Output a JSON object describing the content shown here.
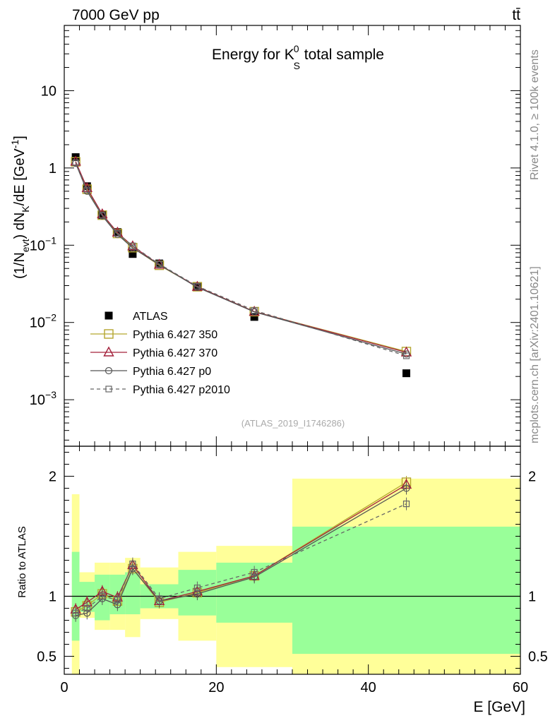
{
  "header": {
    "left": "7000 GeV pp",
    "right": "tt̄"
  },
  "side_labels": {
    "rivet": "Rivet 4.1.0, ≥ 100k events",
    "mcplots": "mcplots.cern.ch [arXiv:2401.10621]"
  },
  "colors": {
    "atlas": "#000000",
    "p350": "#b5a62f",
    "p370": "#a3213b",
    "p0": "#555555",
    "p2010": "#666666",
    "band_yellow": "#ffff99",
    "band_green": "#99ff99"
  },
  "chart_data": [
    {
      "type": "line",
      "title": "Energy for K",
      "title_sup": "0",
      "title_sub": "S",
      "title_suffix": " total sample",
      "ylabel": "(1/N_evt) dN_K/dE [GeV^-1]",
      "ylabel_parts": {
        "a": "(1/N",
        "sub1": "evt",
        "b": ") dN",
        "sub2": "K",
        "c": "/dE [GeV",
        "sup": "-1",
        "d": "]"
      },
      "yscale": "log",
      "xlim": [
        0,
        60
      ],
      "ylim": [
        0.00025,
        70
      ],
      "yticks": [
        {
          "v": 10,
          "mant": "10",
          "exp": ""
        },
        {
          "v": 1,
          "mant": "1",
          "exp": ""
        },
        {
          "v": 0.1,
          "mant": "10",
          "exp": "−1"
        },
        {
          "v": 0.01,
          "mant": "10",
          "exp": "−2"
        },
        {
          "v": 0.001,
          "mant": "10",
          "exp": "−3"
        }
      ],
      "x": [
        1.5,
        3,
        5,
        7,
        9,
        12.5,
        17.5,
        25,
        45
      ],
      "series": [
        {
          "name": "ATLAS",
          "values": [
            1.38,
            0.58,
            0.245,
            0.148,
            0.077,
            0.058,
            0.029,
            0.0118,
            0.0022
          ]
        },
        {
          "name": "Pythia 6.427 350",
          "values": [
            1.2,
            0.53,
            0.245,
            0.142,
            0.093,
            0.055,
            0.029,
            0.0138,
            0.0042
          ]
        },
        {
          "name": "Pythia 6.427 370",
          "values": [
            1.21,
            0.55,
            0.252,
            0.146,
            0.097,
            0.056,
            0.029,
            0.0138,
            0.0041
          ]
        },
        {
          "name": "Pythia 6.427 p0",
          "values": [
            1.15,
            0.5,
            0.24,
            0.138,
            0.092,
            0.056,
            0.0285,
            0.0137,
            0.0039
          ]
        },
        {
          "name": "Pythia 6.427 p2010",
          "values": [
            1.17,
            0.52,
            0.245,
            0.143,
            0.098,
            0.057,
            0.0295,
            0.0143,
            0.0037
          ]
        }
      ],
      "watermark": "(ATLAS_2019_I1746286)"
    },
    {
      "type": "line",
      "ylabel": "Ratio to ATLAS",
      "xlabel": "E [GeV]",
      "xlim": [
        0,
        60
      ],
      "ylim": [
        0.35,
        2.25
      ],
      "yticks": [
        {
          "v": 2,
          "label": "2"
        },
        {
          "v": 1,
          "label": "1"
        },
        {
          "v": 0.5,
          "label": "0.5"
        }
      ],
      "xticks": [
        {
          "v": 0,
          "label": "0"
        },
        {
          "v": 20,
          "label": "20"
        },
        {
          "v": 40,
          "label": "40"
        },
        {
          "v": 60,
          "label": "60"
        }
      ],
      "bands": [
        {
          "x0": 1,
          "x1": 2,
          "yellow": [
            0.35,
            1.85
          ],
          "green": [
            0.63,
            1.37
          ]
        },
        {
          "x0": 2,
          "x1": 4,
          "yellow": [
            0.82,
            1.2
          ],
          "green": [
            0.87,
            1.12
          ]
        },
        {
          "x0": 4,
          "x1": 6,
          "yellow": [
            0.72,
            1.28
          ],
          "green": [
            0.8,
            1.18
          ]
        },
        {
          "x0": 6,
          "x1": 8,
          "yellow": [
            0.72,
            1.28
          ],
          "green": [
            0.85,
            1.18
          ]
        },
        {
          "x0": 8,
          "x1": 10,
          "yellow": [
            0.66,
            1.32
          ],
          "green": [
            0.85,
            1.2
          ]
        },
        {
          "x0": 10,
          "x1": 15,
          "yellow": [
            0.81,
            1.24
          ],
          "green": [
            0.9,
            1.1
          ]
        },
        {
          "x0": 15,
          "x1": 20,
          "yellow": [
            0.63,
            1.37
          ],
          "green": [
            0.84,
            1.22
          ]
        },
        {
          "x0": 20,
          "x1": 30,
          "yellow": [
            0.41,
            1.42
          ],
          "green": [
            0.78,
            1.28
          ]
        },
        {
          "x0": 30,
          "x1": 60,
          "yellow": [
            0.35,
            1.98
          ],
          "green": [
            0.52,
            1.58
          ]
        }
      ],
      "x": [
        1.5,
        3,
        5,
        7,
        9,
        12.5,
        17.5,
        25,
        45
      ],
      "series": [
        {
          "name": "Pythia 6.427 350",
          "values": [
            0.87,
            0.92,
            1.02,
            0.96,
            1.23,
            0.95,
            1.03,
            1.17,
            1.95
          ]
        },
        {
          "name": "Pythia 6.427 370",
          "values": [
            0.89,
            0.95,
            1.04,
            0.99,
            1.26,
            0.96,
            1.04,
            1.17,
            1.93
          ]
        },
        {
          "name": "Pythia 6.427 p0",
          "values": [
            0.84,
            0.86,
            0.98,
            0.93,
            1.23,
            0.96,
            1.02,
            1.16,
            1.9
          ]
        },
        {
          "name": "Pythia 6.427 p2010",
          "values": [
            0.86,
            0.9,
            1.0,
            0.97,
            1.27,
            0.98,
            1.07,
            1.2,
            1.77
          ]
        }
      ]
    }
  ]
}
